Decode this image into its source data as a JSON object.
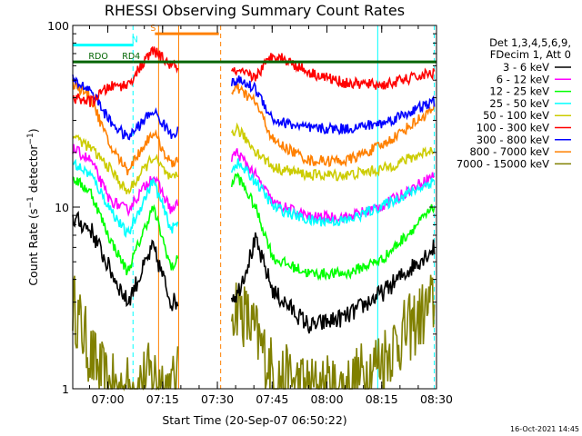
{
  "chart_data": {
    "type": "line",
    "title": "RHESSI Observing Summary Count Rates",
    "xlabel": "Start Time (20-Sep-07 06:50:22)",
    "ylabel": "Count Rate (s⁻¹ detector⁻¹)",
    "ylabel_main": "Count Rate (s",
    "ylabel_mid": " detector",
    "ylabel_end": ")",
    "ylabel_sup": "−1",
    "yscale": "log",
    "ylim": [
      1,
      100
    ],
    "xlim_minutes": [
      0,
      99.6
    ],
    "x_ticks": [
      {
        "label": "07:00",
        "min": 9.6
      },
      {
        "label": "07:15",
        "min": 24.6
      },
      {
        "label": "07:30",
        "min": 39.6
      },
      {
        "label": "07:45",
        "min": 54.6
      },
      {
        "label": "08:00",
        "min": 69.6
      },
      {
        "label": "08:15",
        "min": 84.6
      },
      {
        "label": "08:30",
        "min": 99.6
      }
    ],
    "y_ticks": [
      {
        "label": "1",
        "value": 1
      },
      {
        "label": "10",
        "value": 10
      },
      {
        "label": "100",
        "value": 100
      }
    ],
    "legend": {
      "header_line1": "Det 1,3,4,5,6,9,",
      "header_line2": "FDecim 1, Att 0",
      "position": "right"
    },
    "gaps_minutes": [
      [
        28.8,
        43.4
      ]
    ],
    "series": [
      {
        "name": "3 - 6 keV",
        "color": "#000000",
        "values": [
          8.7,
          7.5,
          4.6,
          3.0,
          6.0,
          3.0,
          3.3,
          6.5,
          3.4,
          2.2,
          2.5,
          3.4,
          6.0
        ]
      },
      {
        "name": "6 - 12 keV",
        "color": "#ff00ff",
        "values": [
          21.0,
          18.0,
          11.0,
          9.6,
          15.0,
          9.6,
          20.0,
          15.0,
          10.5,
          8.8,
          8.8,
          10.2,
          15.0
        ]
      },
      {
        "name": "12 - 25 keV",
        "color": "#00ff00",
        "values": [
          14.5,
          12.0,
          6.8,
          4.4,
          10.0,
          4.6,
          15.0,
          10.0,
          5.2,
          4.3,
          4.3,
          5.2,
          10.0
        ]
      },
      {
        "name": "25 - 50 keV",
        "color": "#00ffff",
        "values": [
          17.5,
          15.0,
          10.0,
          7.0,
          14.0,
          7.5,
          17.5,
          14.0,
          10.0,
          8.4,
          8.4,
          10.2,
          14.0
        ]
      },
      {
        "name": "50 - 100 keV",
        "color": "#cccc00",
        "values": [
          25.0,
          21.0,
          16.5,
          12.0,
          19.0,
          14.0,
          27.0,
          20.5,
          16.5,
          15.0,
          15.0,
          16.2,
          21.0
        ]
      },
      {
        "name": "100 - 300 keV",
        "color": "#ff0000",
        "values": [
          40.0,
          38.0,
          46.0,
          47.0,
          73.0,
          60.0,
          55.0,
          52.0,
          70.0,
          55.0,
          48.0,
          47.0,
          55.0
        ]
      },
      {
        "name": "300 - 800 keV",
        "color": "#0000ff",
        "values": [
          50.0,
          44.0,
          30.0,
          24.0,
          34.0,
          25.0,
          50.0,
          45.0,
          30.0,
          27.0,
          27.0,
          29.0,
          38.0
        ]
      },
      {
        "name": "800 - 7000 keV",
        "color": "#ff8000",
        "values": [
          48.0,
          40.0,
          22.0,
          16.0,
          26.0,
          17.0,
          45.0,
          38.0,
          23.0,
          18.0,
          18.0,
          22.0,
          35.0
        ]
      },
      {
        "name": "7000 - 15000 keV",
        "color": "#808000",
        "values": [
          3.0,
          1.5,
          1.0,
          1.0,
          1.2,
          1.0,
          3.0,
          2.0,
          1.2,
          1.0,
          1.0,
          1.5,
          3.0
        ]
      }
    ],
    "series_x_minutes": [
      0,
      5,
      10,
      15,
      22,
      27,
      45,
      50,
      55,
      65,
      75,
      85,
      99
    ],
    "flag_bars": [
      {
        "label": "RDO",
        "color": "#006400",
        "from_min": 0,
        "to_min": 16.5,
        "level": 63,
        "label_at_min": 7
      },
      {
        "label": "RD4",
        "color": "#006400",
        "from_min": 16.5,
        "to_min": 99.6,
        "level": 63,
        "label_at_min": 16
      },
      {
        "label": "N",
        "color": "#00ffff",
        "from_min": 0,
        "to_min": 16.5,
        "level": 78,
        "label_at_min": 17
      },
      {
        "label": "S",
        "color": "#ff8000",
        "from_min": 22.5,
        "to_min": 40,
        "level": 90,
        "label_at_min": 22
      }
    ],
    "v_lines": [
      {
        "min": 0,
        "color": "#00ffff",
        "style": "solid"
      },
      {
        "min": 16.5,
        "color": "#00ffff",
        "style": "dashed"
      },
      {
        "min": 23.5,
        "color": "#ff8000",
        "style": "solid"
      },
      {
        "min": 29.0,
        "color": "#ff8000",
        "style": "solid"
      },
      {
        "min": 40.5,
        "color": "#ff8000",
        "style": "dashed"
      },
      {
        "min": 83.5,
        "color": "#00ffff",
        "style": "solid"
      },
      {
        "min": 99.0,
        "color": "#00ffff",
        "style": "dashed"
      }
    ],
    "timestamp": "16-Oct-2021 14:45"
  }
}
